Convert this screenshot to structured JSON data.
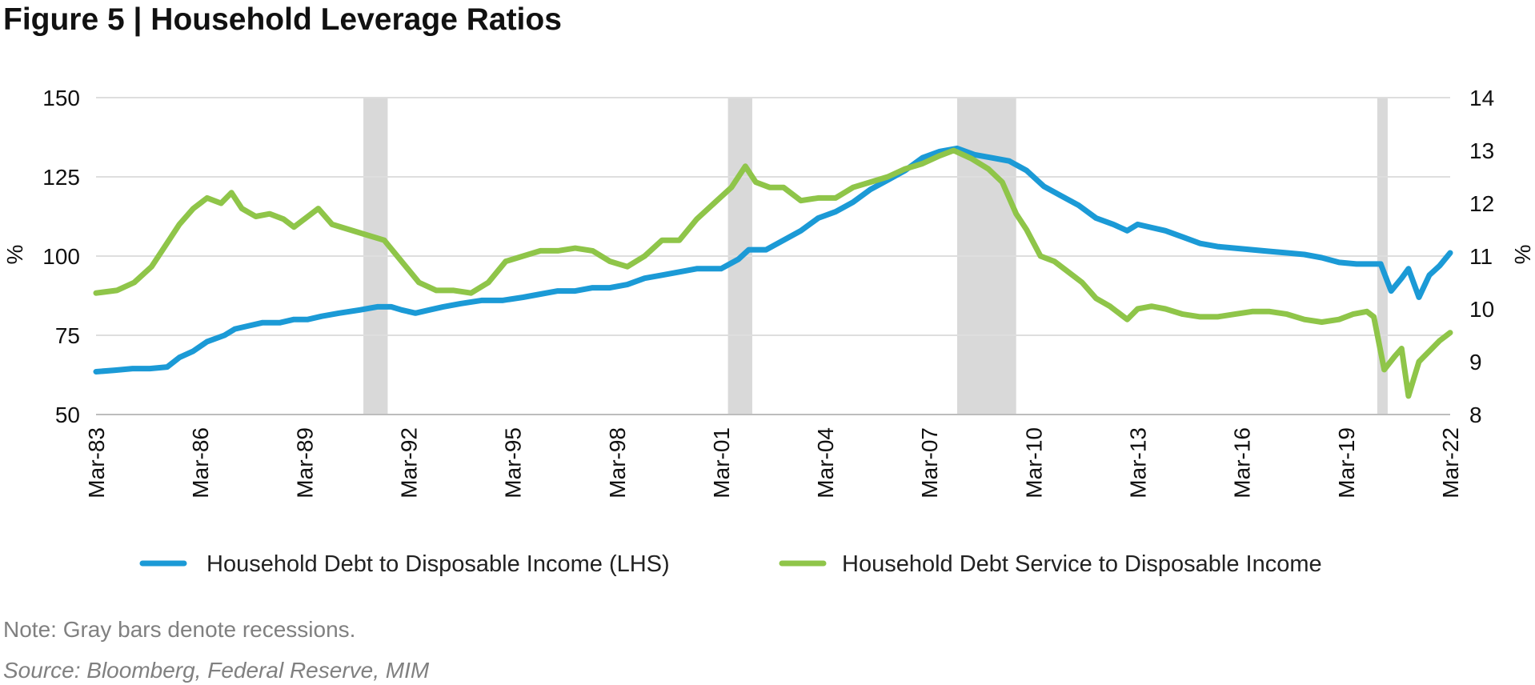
{
  "chart_data": {
    "type": "line",
    "title": "Figure 5  |  Household Leverage Ratios",
    "ylabel_left": "%",
    "ylabel_right": "%",
    "xlabel": "",
    "ylim_left": [
      50,
      150
    ],
    "ylim_right": [
      8,
      14
    ],
    "yticks_left": [
      "50",
      "75",
      "100",
      "125",
      "150"
    ],
    "yticks_right": [
      "8",
      "9",
      "10",
      "11",
      "12",
      "13",
      "14"
    ],
    "xticks": [
      "Mar-83",
      "Mar-86",
      "Mar-89",
      "Mar-92",
      "Mar-95",
      "Mar-98",
      "Mar-01",
      "Mar-04",
      "Mar-07",
      "Mar-10",
      "Mar-13",
      "Mar-16",
      "Mar-19",
      "Mar-22"
    ],
    "x_range": [
      1983.2,
      2022.2
    ],
    "grid": true,
    "legend_position": "bottom",
    "recessions": [
      {
        "start": 1990.9,
        "end": 1991.6
      },
      {
        "start": 2001.4,
        "end": 2002.1
      },
      {
        "start": 2008.0,
        "end": 2009.7
      },
      {
        "start": 2020.1,
        "end": 2020.4
      }
    ],
    "series": [
      {
        "name": "Household Debt to Disposable Income (LHS)",
        "axis": "left",
        "color": "#1b9ad6",
        "x": [
          1983.2,
          1983.75,
          1984.25,
          1984.75,
          1985.25,
          1985.6,
          1986.0,
          1986.4,
          1986.9,
          1987.2,
          1987.6,
          1988.0,
          1988.5,
          1988.9,
          1989.3,
          1989.7,
          1990.2,
          1990.8,
          1991.3,
          1991.7,
          1992.0,
          1992.4,
          1992.8,
          1993.2,
          1993.7,
          1994.3,
          1994.9,
          1995.5,
          1996.0,
          1996.5,
          1997.0,
          1997.5,
          1998.0,
          1998.5,
          1999.0,
          1999.5,
          2000.0,
          2000.5,
          2001.2,
          2001.7,
          2002.0,
          2002.5,
          2003.0,
          2003.5,
          2004.0,
          2004.5,
          2005.0,
          2005.5,
          2006.0,
          2006.5,
          2007.0,
          2007.5,
          2008.0,
          2008.5,
          2009.0,
          2009.5,
          2010.0,
          2010.5,
          2011.0,
          2011.5,
          2012.0,
          2012.5,
          2012.9,
          2013.2,
          2013.6,
          2014.0,
          2014.5,
          2015.0,
          2015.5,
          2016.0,
          2016.5,
          2017.0,
          2017.5,
          2018.0,
          2018.5,
          2019.0,
          2019.5,
          2020.0,
          2020.2,
          2020.5,
          2020.8,
          2021.0,
          2021.3,
          2021.6,
          2021.9,
          2022.2
        ],
        "values": [
          63.5,
          64,
          64.5,
          64.5,
          65,
          68,
          70,
          73,
          75,
          77,
          78,
          79,
          79,
          80,
          80,
          81,
          82,
          83,
          84,
          84,
          83,
          82,
          83,
          84,
          85,
          86,
          86,
          87,
          88,
          89,
          89,
          90,
          90,
          91,
          93,
          94,
          95,
          96,
          96,
          99,
          102,
          102,
          105,
          108,
          112,
          114,
          117,
          121,
          124,
          127,
          131,
          133,
          134,
          132,
          131,
          130,
          127,
          122,
          119,
          116,
          112,
          110,
          108,
          110,
          109,
          108,
          106,
          104,
          103,
          102.5,
          102,
          101.5,
          101,
          100.5,
          99.5,
          98,
          97.5,
          97.5,
          97.5,
          89,
          93,
          96,
          87,
          94,
          97,
          101
        ]
      },
      {
        "name": "Household Debt Service to Disposable Income",
        "axis": "right",
        "color": "#8fc549",
        "x": [
          1983.2,
          1983.8,
          1984.3,
          1984.8,
          1985.2,
          1985.6,
          1986.0,
          1986.4,
          1986.8,
          1987.1,
          1987.4,
          1987.8,
          1988.2,
          1988.6,
          1988.9,
          1989.2,
          1989.6,
          1990.0,
          1990.5,
          1991.0,
          1991.5,
          1992.0,
          1992.5,
          1993.0,
          1993.5,
          1994.0,
          1994.5,
          1995.0,
          1995.5,
          1996.0,
          1996.5,
          1997.0,
          1997.5,
          1998.0,
          1998.5,
          1999.0,
          1999.5,
          2000.0,
          2000.5,
          2001.0,
          2001.5,
          2001.9,
          2002.2,
          2002.6,
          2003.0,
          2003.5,
          2004.0,
          2004.5,
          2005.0,
          2005.5,
          2006.0,
          2006.5,
          2007.0,
          2007.5,
          2007.9,
          2008.4,
          2008.9,
          2009.3,
          2009.7,
          2010.0,
          2010.4,
          2010.8,
          2011.2,
          2011.6,
          2012.0,
          2012.4,
          2012.9,
          2013.2,
          2013.6,
          2014.0,
          2014.5,
          2015.0,
          2015.5,
          2016.0,
          2016.5,
          2017.0,
          2017.5,
          2018.0,
          2018.5,
          2019.0,
          2019.4,
          2019.8,
          2020.0,
          2020.3,
          2020.6,
          2020.8,
          2021.0,
          2021.3,
          2021.6,
          2021.9,
          2022.2
        ],
        "values": [
          10.3,
          10.35,
          10.5,
          10.8,
          11.2,
          11.6,
          11.9,
          12.1,
          12.0,
          12.2,
          11.9,
          11.75,
          11.8,
          11.7,
          11.55,
          11.7,
          11.9,
          11.6,
          11.5,
          11.4,
          11.3,
          10.9,
          10.5,
          10.35,
          10.35,
          10.3,
          10.5,
          10.9,
          11.0,
          11.1,
          11.1,
          11.15,
          11.1,
          10.9,
          10.8,
          11.0,
          11.3,
          11.3,
          11.7,
          12.0,
          12.3,
          12.7,
          12.4,
          12.3,
          12.3,
          12.05,
          12.1,
          12.1,
          12.3,
          12.4,
          12.5,
          12.65,
          12.75,
          12.9,
          13.0,
          12.85,
          12.65,
          12.4,
          11.8,
          11.5,
          11.0,
          10.9,
          10.7,
          10.5,
          10.2,
          10.05,
          9.8,
          10.0,
          10.05,
          10.0,
          9.9,
          9.85,
          9.85,
          9.9,
          9.95,
          9.95,
          9.9,
          9.8,
          9.75,
          9.8,
          9.9,
          9.95,
          9.85,
          8.85,
          9.1,
          9.25,
          8.35,
          9.0,
          9.2,
          9.4,
          9.55
        ]
      }
    ]
  },
  "note": "Note: Gray bars denote recessions.",
  "source": "Source: Bloomberg, Federal Reserve, MIM"
}
